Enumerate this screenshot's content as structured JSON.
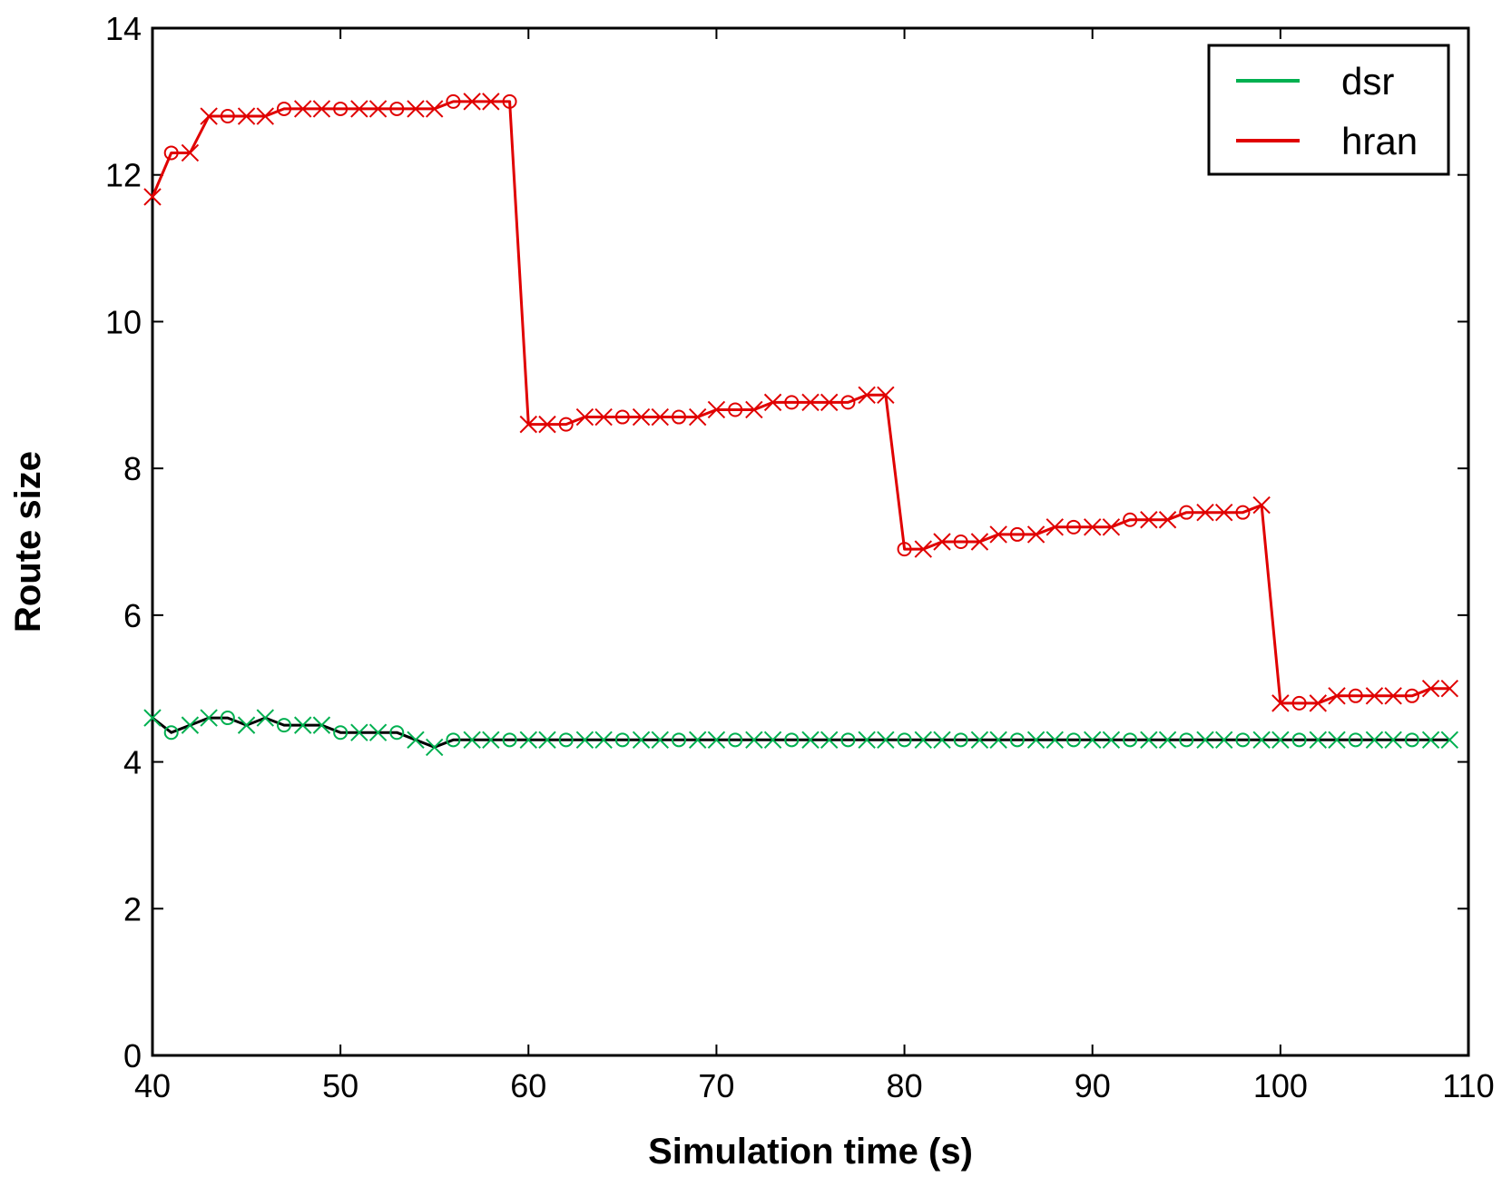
{
  "chart_data": {
    "type": "line",
    "title": "",
    "xlabel": "Simulation time (s)",
    "ylabel": "Route size",
    "xlim": [
      40,
      110
    ],
    "ylim": [
      0,
      14
    ],
    "xticks": [
      40,
      50,
      60,
      70,
      80,
      90,
      100,
      110
    ],
    "yticks": [
      0,
      2,
      4,
      6,
      8,
      10,
      12,
      14
    ],
    "xtick_labels": [
      "40",
      "50",
      "60",
      "70",
      "80",
      "90",
      "100",
      "110"
    ],
    "ytick_labels": [
      "0",
      "2",
      "4",
      "6",
      "8",
      "10",
      "12",
      "14"
    ],
    "grid": false,
    "legend_position": "top-right",
    "series": [
      {
        "name": "dsr",
        "color": "#00b050",
        "line_color": "#000000",
        "x": [
          40,
          41,
          42,
          43,
          44,
          45,
          46,
          47,
          48,
          49,
          50,
          51,
          52,
          53,
          54,
          55,
          56,
          57,
          58,
          59,
          60,
          61,
          62,
          63,
          64,
          65,
          66,
          67,
          68,
          69,
          70,
          71,
          72,
          73,
          74,
          75,
          76,
          77,
          78,
          79,
          80,
          81,
          82,
          83,
          84,
          85,
          86,
          87,
          88,
          89,
          90,
          91,
          92,
          93,
          94,
          95,
          96,
          97,
          98,
          99,
          100,
          101,
          102,
          103,
          104,
          105,
          106,
          107,
          108,
          109
        ],
        "y": [
          4.6,
          4.4,
          4.5,
          4.6,
          4.6,
          4.5,
          4.6,
          4.5,
          4.5,
          4.5,
          4.4,
          4.4,
          4.4,
          4.4,
          4.3,
          4.2,
          4.3,
          4.3,
          4.3,
          4.3,
          4.3,
          4.3,
          4.3,
          4.3,
          4.3,
          4.3,
          4.3,
          4.3,
          4.3,
          4.3,
          4.3,
          4.3,
          4.3,
          4.3,
          4.3,
          4.3,
          4.3,
          4.3,
          4.3,
          4.3,
          4.3,
          4.3,
          4.3,
          4.3,
          4.3,
          4.3,
          4.3,
          4.3,
          4.3,
          4.3,
          4.3,
          4.3,
          4.3,
          4.3,
          4.3,
          4.3,
          4.3,
          4.3,
          4.3,
          4.3,
          4.3,
          4.3,
          4.3,
          4.3,
          4.3,
          4.3,
          4.3,
          4.3,
          4.3,
          4.3
        ]
      },
      {
        "name": "hran",
        "color": "#e00000",
        "line_color": "#e00000",
        "x": [
          40,
          41,
          42,
          43,
          44,
          45,
          46,
          47,
          48,
          49,
          50,
          51,
          52,
          53,
          54,
          55,
          56,
          57,
          58,
          59,
          60,
          61,
          62,
          63,
          64,
          65,
          66,
          67,
          68,
          69,
          70,
          71,
          72,
          73,
          74,
          75,
          76,
          77,
          78,
          79,
          80,
          81,
          82,
          83,
          84,
          85,
          86,
          87,
          88,
          89,
          90,
          91,
          92,
          93,
          94,
          95,
          96,
          97,
          98,
          99,
          100,
          101,
          102,
          103,
          104,
          105,
          106,
          107,
          108,
          109
        ],
        "y": [
          11.7,
          12.3,
          12.3,
          12.8,
          12.8,
          12.8,
          12.8,
          12.9,
          12.9,
          12.9,
          12.9,
          12.9,
          12.9,
          12.9,
          12.9,
          12.9,
          13.0,
          13.0,
          13.0,
          13.0,
          8.6,
          8.6,
          8.6,
          8.7,
          8.7,
          8.7,
          8.7,
          8.7,
          8.7,
          8.7,
          8.8,
          8.8,
          8.8,
          8.9,
          8.9,
          8.9,
          8.9,
          8.9,
          9.0,
          9.0,
          6.9,
          6.9,
          7.0,
          7.0,
          7.0,
          7.1,
          7.1,
          7.1,
          7.2,
          7.2,
          7.2,
          7.2,
          7.3,
          7.3,
          7.3,
          7.4,
          7.4,
          7.4,
          7.4,
          7.5,
          4.8,
          4.8,
          4.8,
          4.9,
          4.9,
          4.9,
          4.9,
          4.9,
          5.0,
          5.0
        ]
      }
    ]
  }
}
